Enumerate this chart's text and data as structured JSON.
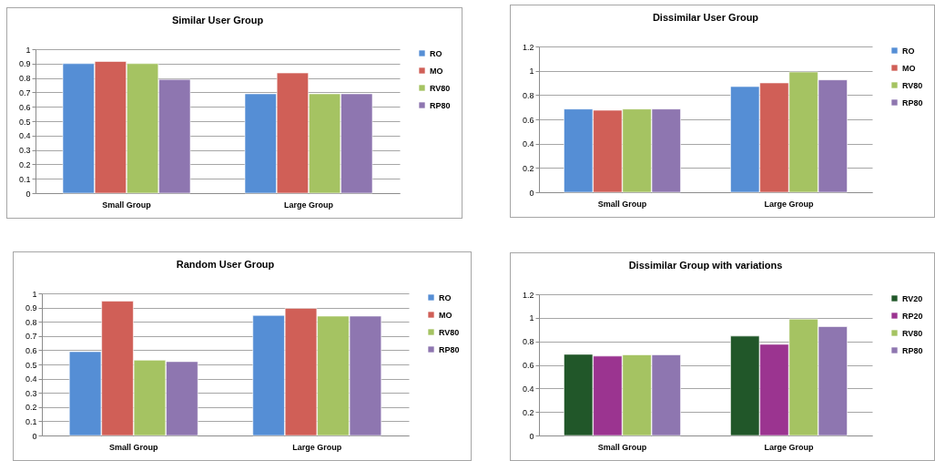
{
  "chart_data": [
    {
      "type": "bar",
      "title": "Similar User Group",
      "categories": [
        "Small Group",
        "Large Group"
      ],
      "ylim": [
        0,
        1
      ],
      "yticks": [
        0,
        0.1,
        0.2,
        0.3,
        0.4,
        0.5,
        0.6,
        0.7,
        0.8,
        0.9,
        1
      ],
      "grid": "y",
      "legend": "right",
      "series": [
        {
          "name": "RO",
          "color": "#558ed5",
          "values": [
            0.9,
            0.69
          ]
        },
        {
          "name": "MO",
          "color": "#d05f57",
          "values": [
            0.915,
            0.835
          ]
        },
        {
          "name": "RV80",
          "color": "#a5c362",
          "values": [
            0.9,
            0.69
          ]
        },
        {
          "name": "RP80",
          "color": "#8e76b0",
          "values": [
            0.79,
            0.69
          ]
        }
      ]
    },
    {
      "type": "bar",
      "title": "Dissimilar User Group",
      "categories": [
        "Small Group",
        "Large Group"
      ],
      "ylim": [
        0,
        1.2
      ],
      "yticks": [
        0,
        0.2,
        0.4,
        0.6,
        0.8,
        1,
        1.2
      ],
      "grid": "y",
      "legend": "right",
      "series": [
        {
          "name": "RO",
          "color": "#558ed5",
          "values": [
            0.685,
            0.87
          ]
        },
        {
          "name": "MO",
          "color": "#d05f57",
          "values": [
            0.675,
            0.9
          ]
        },
        {
          "name": "RV80",
          "color": "#a5c362",
          "values": [
            0.685,
            0.99
          ]
        },
        {
          "name": "RP80",
          "color": "#8e76b0",
          "values": [
            0.685,
            0.925
          ]
        }
      ]
    },
    {
      "type": "bar",
      "title": "Random User Group",
      "categories": [
        "Small Group",
        "Large Group"
      ],
      "ylim": [
        0,
        1
      ],
      "yticks": [
        0,
        0.1,
        0.2,
        0.3,
        0.4,
        0.5,
        0.6,
        0.7,
        0.8,
        0.9,
        1
      ],
      "grid": "y",
      "legend": "right",
      "series": [
        {
          "name": "RO",
          "color": "#558ed5",
          "values": [
            0.59,
            0.845
          ]
        },
        {
          "name": "MO",
          "color": "#d05f57",
          "values": [
            0.945,
            0.895
          ]
        },
        {
          "name": "RV80",
          "color": "#a5c362",
          "values": [
            0.53,
            0.84
          ]
        },
        {
          "name": "RP80",
          "color": "#8e76b0",
          "values": [
            0.52,
            0.84
          ]
        }
      ]
    },
    {
      "type": "bar",
      "title": "Dissimilar Group with variations",
      "categories": [
        "Small Group",
        "Large Group"
      ],
      "ylim": [
        0,
        1.2
      ],
      "yticks": [
        0,
        0.2,
        0.4,
        0.6,
        0.8,
        1,
        1.2
      ],
      "grid": "y",
      "legend": "right",
      "series": [
        {
          "name": "RV20",
          "color": "#215729",
          "values": [
            0.69,
            0.845
          ]
        },
        {
          "name": "RP20",
          "color": "#9b3490",
          "values": [
            0.675,
            0.775
          ]
        },
        {
          "name": "RV80",
          "color": "#a5c362",
          "values": [
            0.685,
            0.99
          ]
        },
        {
          "name": "RP80",
          "color": "#8e76b0",
          "values": [
            0.685,
            0.925
          ]
        }
      ]
    }
  ]
}
